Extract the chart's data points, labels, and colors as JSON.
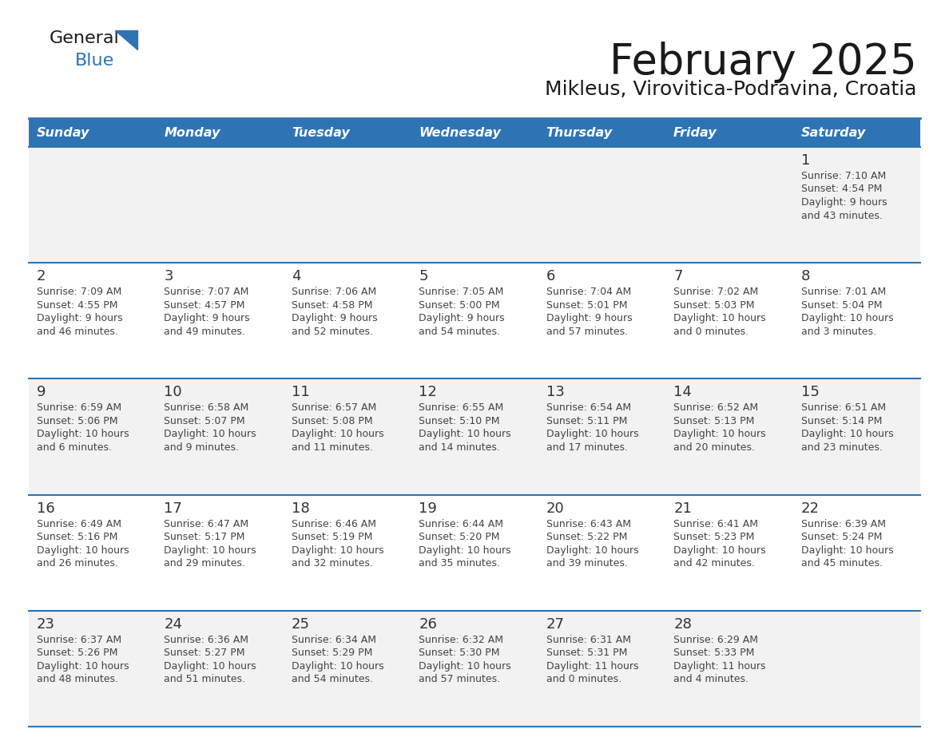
{
  "title": "February 2025",
  "subtitle": "Mikleus, Virovitica-Podravina, Croatia",
  "header_bg_color": "#2E74B5",
  "header_text_color": "#FFFFFF",
  "days_of_week": [
    "Sunday",
    "Monday",
    "Tuesday",
    "Wednesday",
    "Thursday",
    "Friday",
    "Saturday"
  ],
  "row_bg_even": "#F2F2F2",
  "row_bg_odd": "#FFFFFF",
  "divider_color": "#2E74B5",
  "day_number_color": "#333333",
  "cell_text_color": "#444444",
  "calendar_data": [
    [
      {
        "day": "",
        "sunrise": "",
        "sunset": "",
        "daylight1": "",
        "daylight2": ""
      },
      {
        "day": "",
        "sunrise": "",
        "sunset": "",
        "daylight1": "",
        "daylight2": ""
      },
      {
        "day": "",
        "sunrise": "",
        "sunset": "",
        "daylight1": "",
        "daylight2": ""
      },
      {
        "day": "",
        "sunrise": "",
        "sunset": "",
        "daylight1": "",
        "daylight2": ""
      },
      {
        "day": "",
        "sunrise": "",
        "sunset": "",
        "daylight1": "",
        "daylight2": ""
      },
      {
        "day": "",
        "sunrise": "",
        "sunset": "",
        "daylight1": "",
        "daylight2": ""
      },
      {
        "day": "1",
        "sunrise": "7:10 AM",
        "sunset": "4:54 PM",
        "daylight1": "9 hours",
        "daylight2": "and 43 minutes."
      }
    ],
    [
      {
        "day": "2",
        "sunrise": "7:09 AM",
        "sunset": "4:55 PM",
        "daylight1": "9 hours",
        "daylight2": "and 46 minutes."
      },
      {
        "day": "3",
        "sunrise": "7:07 AM",
        "sunset": "4:57 PM",
        "daylight1": "9 hours",
        "daylight2": "and 49 minutes."
      },
      {
        "day": "4",
        "sunrise": "7:06 AM",
        "sunset": "4:58 PM",
        "daylight1": "9 hours",
        "daylight2": "and 52 minutes."
      },
      {
        "day": "5",
        "sunrise": "7:05 AM",
        "sunset": "5:00 PM",
        "daylight1": "9 hours",
        "daylight2": "and 54 minutes."
      },
      {
        "day": "6",
        "sunrise": "7:04 AM",
        "sunset": "5:01 PM",
        "daylight1": "9 hours",
        "daylight2": "and 57 minutes."
      },
      {
        "day": "7",
        "sunrise": "7:02 AM",
        "sunset": "5:03 PM",
        "daylight1": "10 hours",
        "daylight2": "and 0 minutes."
      },
      {
        "day": "8",
        "sunrise": "7:01 AM",
        "sunset": "5:04 PM",
        "daylight1": "10 hours",
        "daylight2": "and 3 minutes."
      }
    ],
    [
      {
        "day": "9",
        "sunrise": "6:59 AM",
        "sunset": "5:06 PM",
        "daylight1": "10 hours",
        "daylight2": "and 6 minutes."
      },
      {
        "day": "10",
        "sunrise": "6:58 AM",
        "sunset": "5:07 PM",
        "daylight1": "10 hours",
        "daylight2": "and 9 minutes."
      },
      {
        "day": "11",
        "sunrise": "6:57 AM",
        "sunset": "5:08 PM",
        "daylight1": "10 hours",
        "daylight2": "and 11 minutes."
      },
      {
        "day": "12",
        "sunrise": "6:55 AM",
        "sunset": "5:10 PM",
        "daylight1": "10 hours",
        "daylight2": "and 14 minutes."
      },
      {
        "day": "13",
        "sunrise": "6:54 AM",
        "sunset": "5:11 PM",
        "daylight1": "10 hours",
        "daylight2": "and 17 minutes."
      },
      {
        "day": "14",
        "sunrise": "6:52 AM",
        "sunset": "5:13 PM",
        "daylight1": "10 hours",
        "daylight2": "and 20 minutes."
      },
      {
        "day": "15",
        "sunrise": "6:51 AM",
        "sunset": "5:14 PM",
        "daylight1": "10 hours",
        "daylight2": "and 23 minutes."
      }
    ],
    [
      {
        "day": "16",
        "sunrise": "6:49 AM",
        "sunset": "5:16 PM",
        "daylight1": "10 hours",
        "daylight2": "and 26 minutes."
      },
      {
        "day": "17",
        "sunrise": "6:47 AM",
        "sunset": "5:17 PM",
        "daylight1": "10 hours",
        "daylight2": "and 29 minutes."
      },
      {
        "day": "18",
        "sunrise": "6:46 AM",
        "sunset": "5:19 PM",
        "daylight1": "10 hours",
        "daylight2": "and 32 minutes."
      },
      {
        "day": "19",
        "sunrise": "6:44 AM",
        "sunset": "5:20 PM",
        "daylight1": "10 hours",
        "daylight2": "and 35 minutes."
      },
      {
        "day": "20",
        "sunrise": "6:43 AM",
        "sunset": "5:22 PM",
        "daylight1": "10 hours",
        "daylight2": "and 39 minutes."
      },
      {
        "day": "21",
        "sunrise": "6:41 AM",
        "sunset": "5:23 PM",
        "daylight1": "10 hours",
        "daylight2": "and 42 minutes."
      },
      {
        "day": "22",
        "sunrise": "6:39 AM",
        "sunset": "5:24 PM",
        "daylight1": "10 hours",
        "daylight2": "and 45 minutes."
      }
    ],
    [
      {
        "day": "23",
        "sunrise": "6:37 AM",
        "sunset": "5:26 PM",
        "daylight1": "10 hours",
        "daylight2": "and 48 minutes."
      },
      {
        "day": "24",
        "sunrise": "6:36 AM",
        "sunset": "5:27 PM",
        "daylight1": "10 hours",
        "daylight2": "and 51 minutes."
      },
      {
        "day": "25",
        "sunrise": "6:34 AM",
        "sunset": "5:29 PM",
        "daylight1": "10 hours",
        "daylight2": "and 54 minutes."
      },
      {
        "day": "26",
        "sunrise": "6:32 AM",
        "sunset": "5:30 PM",
        "daylight1": "10 hours",
        "daylight2": "and 57 minutes."
      },
      {
        "day": "27",
        "sunrise": "6:31 AM",
        "sunset": "5:31 PM",
        "daylight1": "11 hours",
        "daylight2": "and 0 minutes."
      },
      {
        "day": "28",
        "sunrise": "6:29 AM",
        "sunset": "5:33 PM",
        "daylight1": "11 hours",
        "daylight2": "and 4 minutes."
      },
      {
        "day": "",
        "sunrise": "",
        "sunset": "",
        "daylight1": "",
        "daylight2": ""
      }
    ]
  ]
}
